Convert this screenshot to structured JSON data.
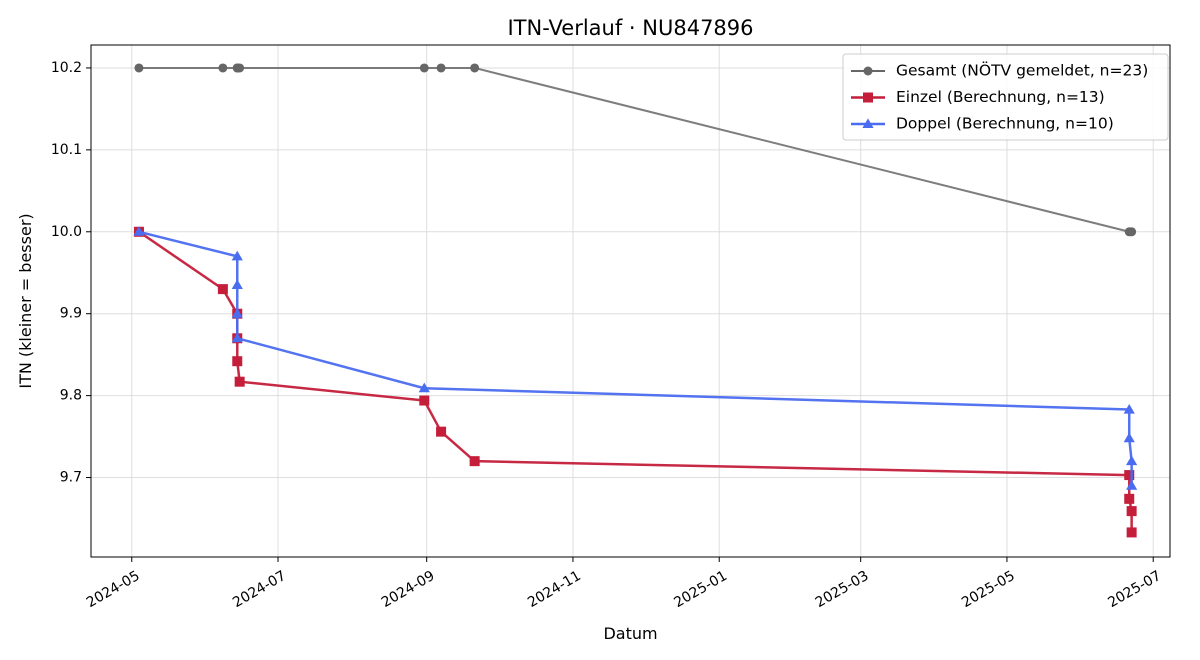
{
  "chart_data": {
    "type": "line",
    "title": "ITN-Verlauf · NU847896",
    "xlabel": "Datum",
    "ylabel": "ITN  (kleiner = besser)",
    "x_axis_kind": "date",
    "xlim": [
      "2024-04-14",
      "2025-07-08"
    ],
    "ylim": [
      9.603,
      10.228
    ],
    "x_ticks": [
      "2024-05-01",
      "2024-07-01",
      "2024-09-01",
      "2024-11-01",
      "2025-01-01",
      "2025-03-01",
      "2025-05-01",
      "2025-07-01"
    ],
    "x_tick_labels": [
      "2024-05",
      "2024-07",
      "2024-09",
      "2024-11",
      "2025-01",
      "2025-03",
      "2025-05",
      "2025-07"
    ],
    "y_ticks": [
      9.7,
      9.8,
      9.9,
      10.0,
      10.1,
      10.2
    ],
    "y_tick_labels": [
      "9.7",
      "9.8",
      "9.9",
      "10.0",
      "10.1",
      "10.2"
    ],
    "grid": true,
    "legend_position": "top-right",
    "series": [
      {
        "name": "Gesamt (NÖTV gemeldet, n=23)",
        "color": "#666666",
        "marker": "circle",
        "x": [
          "2024-05-04",
          "2024-06-08",
          "2024-06-14",
          "2024-06-14",
          "2024-06-14",
          "2024-06-15",
          "2024-08-31",
          "2024-09-07",
          "2024-09-21",
          "2025-06-21",
          "2025-06-22"
        ],
        "y": [
          10.2,
          10.2,
          10.2,
          10.2,
          10.2,
          10.2,
          10.2,
          10.2,
          10.2,
          10.0,
          10.0
        ]
      },
      {
        "name": "Einzel (Berechnung, n=13)",
        "color": "#c41e3a",
        "marker": "square",
        "x": [
          "2024-05-04",
          "2024-06-08",
          "2024-06-14",
          "2024-06-14",
          "2024-06-14",
          "2024-06-15",
          "2024-08-31",
          "2024-09-07",
          "2024-09-21",
          "2025-06-21",
          "2025-06-21",
          "2025-06-22",
          "2025-06-22"
        ],
        "y": [
          10.0,
          9.93,
          9.9,
          9.87,
          9.842,
          9.817,
          9.794,
          9.756,
          9.72,
          9.703,
          9.674,
          9.659,
          9.633
        ]
      },
      {
        "name": "Doppel (Berechnung, n=10)",
        "color": "#4a6cf0",
        "marker": "triangle",
        "x": [
          "2024-05-04",
          "2024-06-14",
          "2024-06-14",
          "2024-06-14",
          "2024-06-14",
          "2024-08-31",
          "2025-06-21",
          "2025-06-21",
          "2025-06-22",
          "2025-06-22"
        ],
        "y": [
          10.0,
          9.97,
          9.935,
          9.9,
          9.87,
          9.809,
          9.783,
          9.748,
          9.72,
          9.69
        ]
      }
    ]
  }
}
